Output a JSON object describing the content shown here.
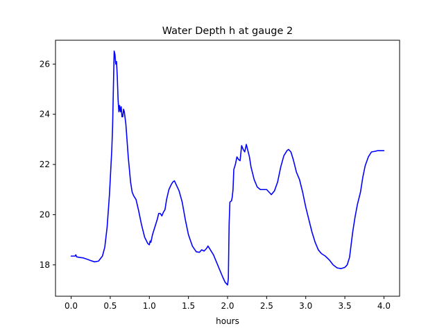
{
  "chart_data": {
    "type": "line",
    "title": "Water Depth h at gauge 2",
    "xlabel": "hours",
    "ylabel": "",
    "xlim": [
      -0.2,
      4.2
    ],
    "ylim": [
      16.75,
      26.95
    ],
    "xticks": [
      0.0,
      0.5,
      1.0,
      1.5,
      2.0,
      2.5,
      3.0,
      3.5,
      4.0
    ],
    "xtick_labels": [
      "0.0",
      "0.5",
      "1.0",
      "1.5",
      "2.0",
      "2.5",
      "3.0",
      "3.5",
      "4.0"
    ],
    "yticks": [
      18,
      20,
      22,
      24,
      26
    ],
    "ytick_labels": [
      "18",
      "20",
      "22",
      "24",
      "26"
    ],
    "grid": false,
    "series": [
      {
        "color": "#0000ff",
        "points": [
          [
            0.0,
            18.35
          ],
          [
            0.05,
            18.35
          ],
          [
            0.06,
            18.4
          ],
          [
            0.07,
            18.32
          ],
          [
            0.1,
            18.3
          ],
          [
            0.15,
            18.28
          ],
          [
            0.2,
            18.23
          ],
          [
            0.25,
            18.17
          ],
          [
            0.3,
            18.12
          ],
          [
            0.35,
            18.15
          ],
          [
            0.4,
            18.35
          ],
          [
            0.43,
            18.7
          ],
          [
            0.46,
            19.5
          ],
          [
            0.49,
            20.8
          ],
          [
            0.52,
            22.6
          ],
          [
            0.53,
            23.5
          ],
          [
            0.54,
            25.0
          ],
          [
            0.55,
            26.52
          ],
          [
            0.56,
            26.4
          ],
          [
            0.57,
            26.0
          ],
          [
            0.58,
            26.1
          ],
          [
            0.59,
            25.5
          ],
          [
            0.6,
            24.6
          ],
          [
            0.61,
            24.1
          ],
          [
            0.62,
            24.35
          ],
          [
            0.63,
            24.1
          ],
          [
            0.64,
            24.3
          ],
          [
            0.65,
            23.9
          ],
          [
            0.66,
            23.9
          ],
          [
            0.67,
            24.2
          ],
          [
            0.68,
            24.1
          ],
          [
            0.7,
            23.6
          ],
          [
            0.73,
            22.3
          ],
          [
            0.76,
            21.3
          ],
          [
            0.78,
            20.9
          ],
          [
            0.8,
            20.75
          ],
          [
            0.83,
            20.6
          ],
          [
            0.86,
            20.2
          ],
          [
            0.9,
            19.6
          ],
          [
            0.94,
            19.1
          ],
          [
            0.98,
            18.85
          ],
          [
            1.0,
            18.8
          ],
          [
            1.01,
            18.95
          ],
          [
            1.02,
            18.9
          ],
          [
            1.04,
            19.2
          ],
          [
            1.07,
            19.5
          ],
          [
            1.1,
            19.8
          ],
          [
            1.12,
            20.05
          ],
          [
            1.14,
            20.05
          ],
          [
            1.16,
            19.95
          ],
          [
            1.18,
            20.1
          ],
          [
            1.2,
            20.2
          ],
          [
            1.22,
            20.6
          ],
          [
            1.25,
            21.0
          ],
          [
            1.28,
            21.2
          ],
          [
            1.3,
            21.3
          ],
          [
            1.32,
            21.35
          ],
          [
            1.35,
            21.15
          ],
          [
            1.38,
            20.95
          ],
          [
            1.42,
            20.5
          ],
          [
            1.46,
            19.8
          ],
          [
            1.5,
            19.2
          ],
          [
            1.55,
            18.75
          ],
          [
            1.6,
            18.52
          ],
          [
            1.64,
            18.5
          ],
          [
            1.67,
            18.6
          ],
          [
            1.7,
            18.55
          ],
          [
            1.73,
            18.65
          ],
          [
            1.75,
            18.75
          ],
          [
            1.78,
            18.6
          ],
          [
            1.82,
            18.4
          ],
          [
            1.86,
            18.1
          ],
          [
            1.9,
            17.8
          ],
          [
            1.94,
            17.5
          ],
          [
            1.97,
            17.3
          ],
          [
            2.0,
            17.2
          ],
          [
            2.01,
            17.45
          ],
          [
            2.02,
            19.6
          ],
          [
            2.03,
            20.5
          ],
          [
            2.05,
            20.55
          ],
          [
            2.06,
            20.7
          ],
          [
            2.07,
            21.0
          ],
          [
            2.08,
            21.8
          ],
          [
            2.09,
            21.9
          ],
          [
            2.1,
            22.0
          ],
          [
            2.12,
            22.3
          ],
          [
            2.14,
            22.2
          ],
          [
            2.16,
            22.15
          ],
          [
            2.18,
            22.75
          ],
          [
            2.2,
            22.6
          ],
          [
            2.22,
            22.5
          ],
          [
            2.24,
            22.8
          ],
          [
            2.26,
            22.55
          ],
          [
            2.28,
            22.3
          ],
          [
            2.3,
            21.9
          ],
          [
            2.34,
            21.4
          ],
          [
            2.38,
            21.1
          ],
          [
            2.42,
            21.0
          ],
          [
            2.46,
            21.0
          ],
          [
            2.5,
            21.0
          ],
          [
            2.53,
            20.9
          ],
          [
            2.56,
            20.8
          ],
          [
            2.6,
            20.95
          ],
          [
            2.64,
            21.3
          ],
          [
            2.68,
            21.9
          ],
          [
            2.72,
            22.35
          ],
          [
            2.76,
            22.55
          ],
          [
            2.78,
            22.6
          ],
          [
            2.81,
            22.5
          ],
          [
            2.84,
            22.2
          ],
          [
            2.88,
            21.7
          ],
          [
            2.92,
            21.4
          ],
          [
            2.96,
            20.9
          ],
          [
            3.0,
            20.3
          ],
          [
            3.04,
            19.8
          ],
          [
            3.08,
            19.3
          ],
          [
            3.12,
            18.9
          ],
          [
            3.16,
            18.6
          ],
          [
            3.2,
            18.45
          ],
          [
            3.25,
            18.35
          ],
          [
            3.3,
            18.2
          ],
          [
            3.35,
            18.0
          ],
          [
            3.4,
            17.88
          ],
          [
            3.45,
            17.85
          ],
          [
            3.5,
            17.9
          ],
          [
            3.53,
            18.0
          ],
          [
            3.56,
            18.3
          ],
          [
            3.58,
            18.8
          ],
          [
            3.6,
            19.3
          ],
          [
            3.63,
            19.9
          ],
          [
            3.66,
            20.4
          ],
          [
            3.7,
            20.9
          ],
          [
            3.73,
            21.5
          ],
          [
            3.76,
            21.95
          ],
          [
            3.8,
            22.3
          ],
          [
            3.84,
            22.5
          ],
          [
            3.88,
            22.52
          ],
          [
            3.92,
            22.55
          ],
          [
            3.96,
            22.55
          ],
          [
            4.0,
            22.55
          ]
        ]
      }
    ]
  }
}
